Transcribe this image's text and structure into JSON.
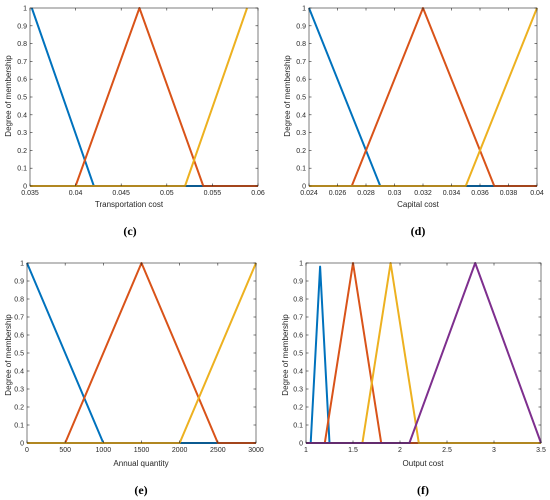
{
  "chart_data": [
    {
      "id": "c",
      "type": "line",
      "caption": "(c)",
      "xlabel": "Transportation cost",
      "ylabel": "Degree of membership",
      "xlim": [
        0.035,
        0.06
      ],
      "ylim": [
        0,
        1
      ],
      "xticks": [
        0.035,
        0.04,
        0.045,
        0.05,
        0.055,
        0.06
      ],
      "xtick_labels": [
        "0.035",
        "0.04",
        "0.045",
        "0.05",
        "0.055",
        "0.06"
      ],
      "yticks": [
        0,
        0.1,
        0.2,
        0.3,
        0.4,
        0.5,
        0.6,
        0.7,
        0.8,
        0.9,
        1
      ],
      "ytick_labels": [
        "0",
        "0.1",
        "0.2",
        "0.3",
        "0.4",
        "0.5",
        "0.6",
        "0.7",
        "0.8",
        "0.9",
        "1"
      ],
      "series": [
        {
          "color": "#0072BD",
          "points": [
            [
              0.0352,
              1
            ],
            [
              0.042,
              0
            ],
            [
              0.06,
              0
            ]
          ]
        },
        {
          "color": "#D95319",
          "points": [
            [
              0.035,
              0
            ],
            [
              0.04,
              0
            ],
            [
              0.047,
              1
            ],
            [
              0.054,
              0
            ],
            [
              0.06,
              0
            ]
          ]
        },
        {
          "color": "#EDB120",
          "points": [
            [
              0.035,
              0
            ],
            [
              0.052,
              0
            ],
            [
              0.0588,
              1
            ]
          ]
        }
      ]
    },
    {
      "id": "d",
      "type": "line",
      "caption": "(d)",
      "xlabel": "Capital cost",
      "ylabel": "Degree of membership",
      "xlim": [
        0.024,
        0.04
      ],
      "ylim": [
        0,
        1
      ],
      "xticks": [
        0.024,
        0.026,
        0.028,
        0.03,
        0.032,
        0.034,
        0.036,
        0.038,
        0.04
      ],
      "xtick_labels": [
        "0.024",
        "0.026",
        "0.028",
        "0.03",
        "0.032",
        "0.034",
        "0.036",
        "0.038",
        "0.04"
      ],
      "yticks": [
        0,
        0.1,
        0.2,
        0.3,
        0.4,
        0.5,
        0.6,
        0.7,
        0.8,
        0.9,
        1
      ],
      "ytick_labels": [
        "0",
        "0.1",
        "0.2",
        "0.3",
        "0.4",
        "0.5",
        "0.6",
        "0.7",
        "0.8",
        "0.9",
        "1"
      ],
      "series": [
        {
          "color": "#0072BD",
          "points": [
            [
              0.024,
              1
            ],
            [
              0.029,
              0
            ],
            [
              0.04,
              0
            ]
          ]
        },
        {
          "color": "#D95319",
          "points": [
            [
              0.024,
              0
            ],
            [
              0.027,
              0
            ],
            [
              0.032,
              1
            ],
            [
              0.037,
              0
            ],
            [
              0.04,
              0
            ]
          ]
        },
        {
          "color": "#EDB120",
          "points": [
            [
              0.024,
              0
            ],
            [
              0.035,
              0
            ],
            [
              0.04,
              1
            ]
          ]
        }
      ]
    },
    {
      "id": "e",
      "type": "line",
      "caption": "(e)",
      "xlabel": "Annual quantity",
      "ylabel": "Degree of membership",
      "xlim": [
        0,
        3000
      ],
      "ylim": [
        0,
        1
      ],
      "xticks": [
        0,
        500,
        1000,
        1500,
        2000,
        2500,
        3000
      ],
      "xtick_labels": [
        "0",
        "500",
        "1000",
        "1500",
        "2000",
        "2500",
        "3000"
      ],
      "yticks": [
        0,
        0.1,
        0.2,
        0.3,
        0.4,
        0.5,
        0.6,
        0.7,
        0.8,
        0.9,
        1
      ],
      "ytick_labels": [
        "0",
        "0.1",
        "0.2",
        "0.3",
        "0.4",
        "0.5",
        "0.6",
        "0.7",
        "0.8",
        "0.9",
        "1"
      ],
      "series": [
        {
          "color": "#0072BD",
          "points": [
            [
              0,
              1
            ],
            [
              1000,
              0
            ],
            [
              3000,
              0
            ]
          ]
        },
        {
          "color": "#D95319",
          "points": [
            [
              0,
              0
            ],
            [
              500,
              0
            ],
            [
              1500,
              1
            ],
            [
              2500,
              0
            ],
            [
              3000,
              0
            ]
          ]
        },
        {
          "color": "#EDB120",
          "points": [
            [
              0,
              0
            ],
            [
              2000,
              0
            ],
            [
              3000,
              1
            ]
          ]
        }
      ]
    },
    {
      "id": "f",
      "type": "line",
      "caption": "(f)",
      "xlabel": "Output cost",
      "ylabel": "Degree of membership",
      "xlim": [
        1,
        3.5
      ],
      "ylim": [
        0,
        1
      ],
      "xticks": [
        1,
        1.5,
        2,
        2.5,
        3,
        3.5
      ],
      "xtick_labels": [
        "1",
        "1.5",
        "2",
        "2.5",
        "3",
        "3.5"
      ],
      "yticks": [
        0,
        0.1,
        0.2,
        0.3,
        0.4,
        0.5,
        0.6,
        0.7,
        0.8,
        0.9,
        1
      ],
      "ytick_labels": [
        "0",
        "0.1",
        "0.2",
        "0.3",
        "0.4",
        "0.5",
        "0.6",
        "0.7",
        "0.8",
        "0.9",
        "1"
      ],
      "series": [
        {
          "color": "#0072BD",
          "points": [
            [
              1,
              0
            ],
            [
              1.05,
              0
            ],
            [
              1.15,
              0.98
            ],
            [
              1.25,
              0
            ],
            [
              3.5,
              0
            ]
          ]
        },
        {
          "color": "#D95319",
          "points": [
            [
              1,
              0
            ],
            [
              1.2,
              0
            ],
            [
              1.5,
              1
            ],
            [
              1.8,
              0
            ],
            [
              3.5,
              0
            ]
          ]
        },
        {
          "color": "#EDB120",
          "points": [
            [
              1,
              0
            ],
            [
              1.6,
              0
            ],
            [
              1.9,
              1
            ],
            [
              2.2,
              0
            ],
            [
              3.5,
              0
            ]
          ]
        },
        {
          "color": "#7E2F8E",
          "points": [
            [
              1,
              0
            ],
            [
              2.1,
              0
            ],
            [
              2.8,
              1
            ],
            [
              3.5,
              0
            ]
          ]
        }
      ]
    }
  ]
}
